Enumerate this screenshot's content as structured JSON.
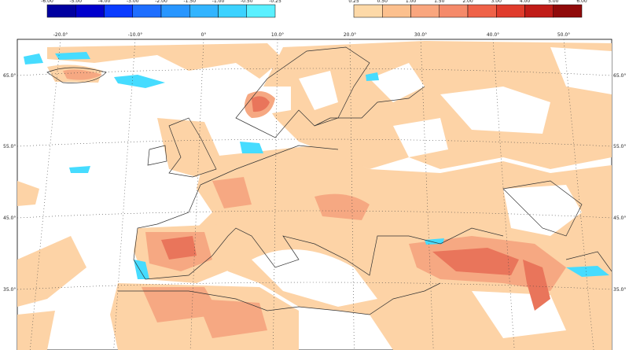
{
  "colorbar_negative": [
    "-6.00",
    "-5.00",
    "-4.00",
    "-3.00",
    "-2.00",
    "-1.50",
    "-1.00",
    "-0.50",
    "-0.25"
  ],
  "colorbar_positive": [
    "0.25",
    "0.50",
    "1.00",
    "1.50",
    "2.00",
    "3.00",
    "4.00",
    "5.00",
    "6.00"
  ],
  "longitude_labels": [
    "-20.0°",
    "-10.0°",
    "0°",
    "10.0°",
    "20.0°",
    "30.0°",
    "40.0°",
    "50.0°"
  ],
  "latitude_labels_left": [
    "65.0°",
    "55.0°",
    "45.0°",
    "35.0°"
  ],
  "latitude_labels_right": [
    "65.0°",
    "55.0°",
    "45.0°",
    "35.0°"
  ]
}
